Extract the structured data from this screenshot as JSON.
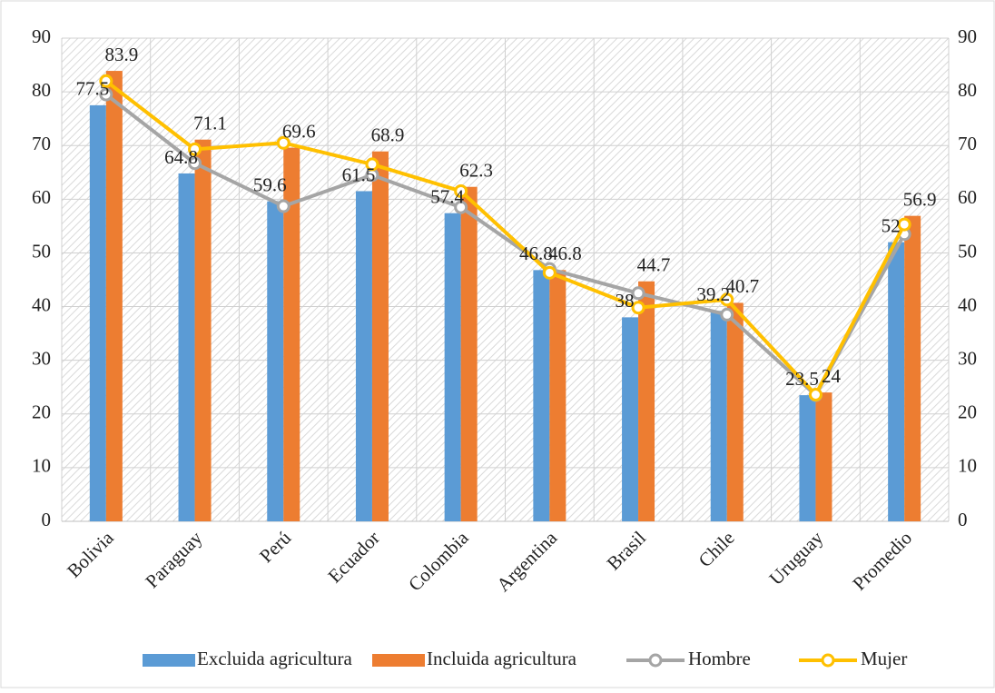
{
  "chart_data": {
    "type": "bar",
    "categories": [
      "Bolivia",
      "Paraguay",
      "Perú",
      "Ecuador",
      "Colombia",
      "Argentina",
      "Brasil",
      "Chile",
      "Uruguay",
      "Promedio"
    ],
    "series": [
      {
        "name": "Excluida agricultura",
        "color": "#5b9bd5",
        "type": "bar",
        "values": [
          77.5,
          64.8,
          59.6,
          61.5,
          57.4,
          46.8,
          38,
          39.2,
          23.5,
          52
        ]
      },
      {
        "name": "Incluida agricultura",
        "color": "#ed7d31",
        "type": "bar",
        "values": [
          83.9,
          71.1,
          69.6,
          68.9,
          62.3,
          46.8,
          44.7,
          40.7,
          24,
          56.9
        ]
      },
      {
        "name": "Hombre",
        "color": "#a5a5a5",
        "type": "line",
        "axis": "y2",
        "values": [
          79.5,
          66.7,
          58.7,
          64.5,
          58.5,
          47,
          42.5,
          38.5,
          23.5,
          53.5
        ]
      },
      {
        "name": "Mujer",
        "color": "#ffc000",
        "type": "line",
        "axis": "y2",
        "values": [
          82,
          69.3,
          70.5,
          66.5,
          61.5,
          46.3,
          39.8,
          41.3,
          23.6,
          55.3
        ]
      }
    ],
    "ylim": [
      0,
      90
    ],
    "yticks": [
      0,
      10,
      20,
      30,
      40,
      50,
      60,
      70,
      80,
      90
    ],
    "y2lim": [
      0,
      90
    ],
    "y2ticks": [
      0,
      10,
      20,
      30,
      40,
      50,
      60,
      70,
      80,
      90
    ],
    "grid": true,
    "legend": "bottom"
  }
}
